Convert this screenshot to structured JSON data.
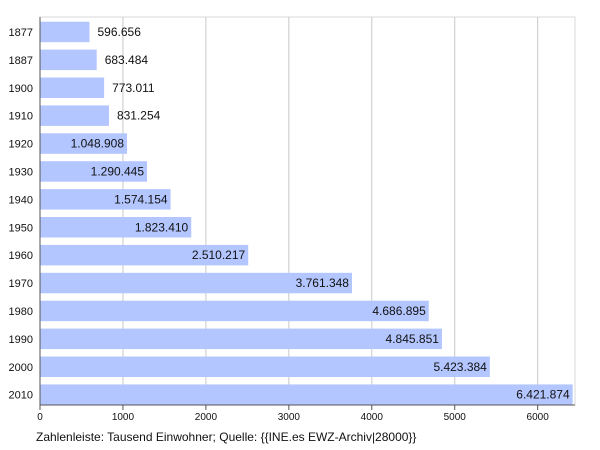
{
  "chart_data": {
    "type": "bar",
    "orientation": "horizontal",
    "categories": [
      "1877",
      "1887",
      "1900",
      "1910",
      "1920",
      "1930",
      "1940",
      "1950",
      "1960",
      "1970",
      "1980",
      "1990",
      "2000",
      "2010"
    ],
    "values": [
      596.656,
      683.484,
      773.011,
      831.254,
      1048.908,
      1290.445,
      1574.154,
      1823.41,
      2510.217,
      3761.348,
      4686.895,
      4845.851,
      5423.384,
      6421.874
    ],
    "value_labels": [
      "596.656",
      "683.484",
      "773.011",
      "831.254",
      "1.048.908",
      "1.290.445",
      "1.574.154",
      "1.823.410",
      "2.510.217",
      "3.761.348",
      "4.686.895",
      "4.845.851",
      "5.423.384",
      "6.421.874"
    ],
    "x_ticks": [
      0,
      1000,
      2000,
      3000,
      4000,
      5000,
      6000
    ],
    "xlim": [
      0,
      6450
    ],
    "grid": "vertical",
    "caption": "Zahlenleiste: Tausend Einwohner; Quelle: {{INE.es EWZ-Archiv|28000}}",
    "colors": {
      "bar": "#b3c6ff",
      "grid": "#c8c8c8",
      "axis": "#555555",
      "text": "#111111"
    }
  }
}
